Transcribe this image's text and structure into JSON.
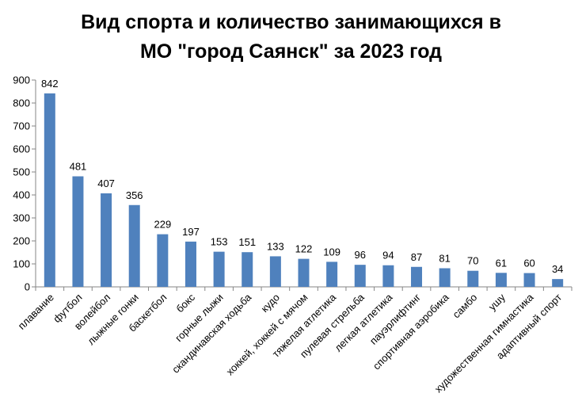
{
  "title_line1": "Вид спорта и количество занимающихся в",
  "title_line2": "МО \"город Саянск\"   за 2023 год",
  "chart_data": {
    "type": "bar",
    "title": "Вид спорта и количество занимающихся в МО \"город Саянск\"   за 2023 год",
    "categories": [
      "плавание",
      "футбол",
      "волейбол",
      "лыжные гонки",
      "баскетбол",
      "бокс",
      "горные лыжи",
      "скандинавская ходьба",
      "кудо",
      "хоккей, хоккей с мячом",
      "тяжелая атлетика",
      "пулевая стрельба",
      "легкая атлетика",
      "пауэрлифтинг",
      "спортивная аэробика",
      "самбо",
      "ушу",
      "художественная гимнастика",
      "адаптивный спорт"
    ],
    "values": [
      842,
      481,
      407,
      356,
      229,
      197,
      153,
      151,
      133,
      122,
      109,
      96,
      94,
      87,
      81,
      70,
      61,
      60,
      34
    ],
    "ylim": [
      0,
      900
    ],
    "yticks": [
      0,
      100,
      200,
      300,
      400,
      500,
      600,
      700,
      800,
      900
    ],
    "bar_color": "#4f81bd",
    "grid": false,
    "legend": "none"
  }
}
